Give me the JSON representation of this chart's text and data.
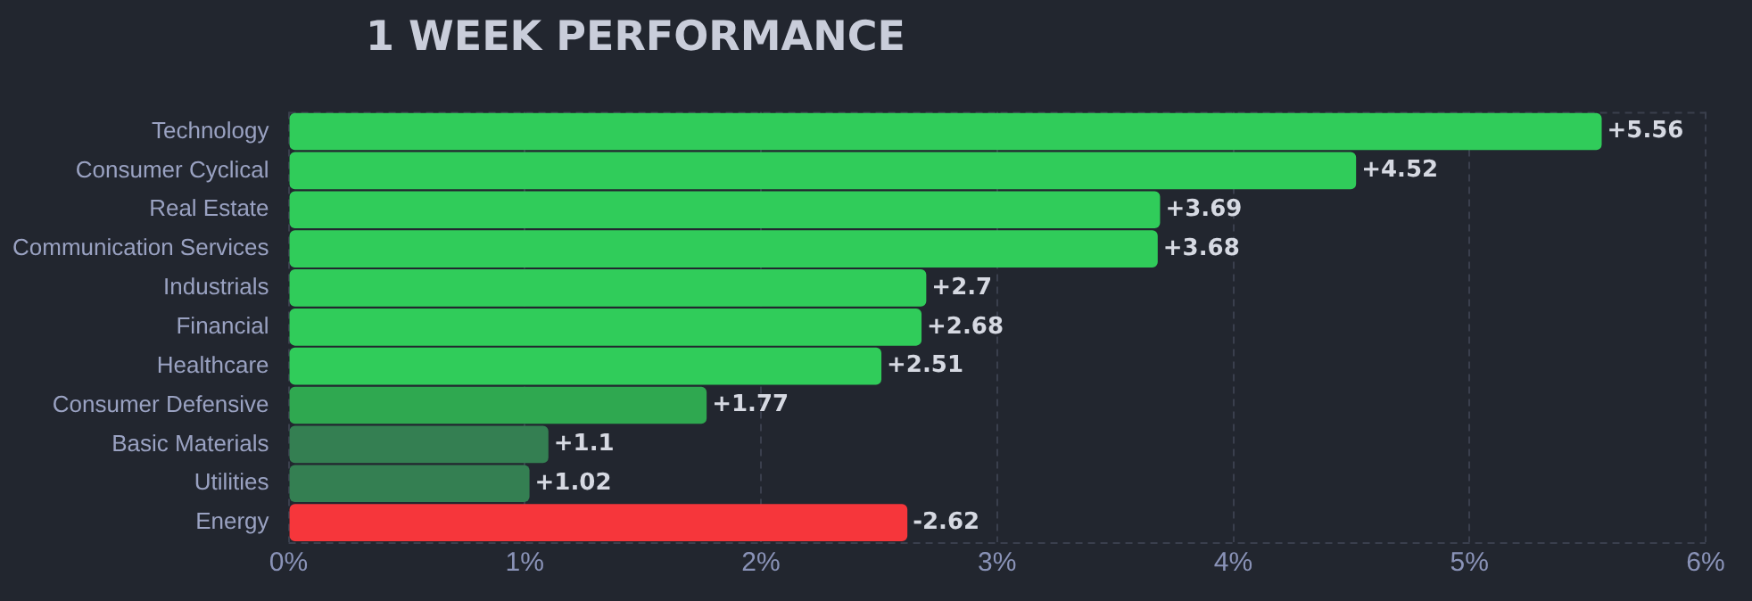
{
  "chart_data": {
    "type": "bar",
    "orientation": "horizontal",
    "title": "1 WEEK PERFORMANCE",
    "categories": [
      "Technology",
      "Consumer Cyclical",
      "Real Estate",
      "Communication Services",
      "Industrials",
      "Financial",
      "Healthcare",
      "Consumer Defensive",
      "Basic Materials",
      "Utilities",
      "Energy"
    ],
    "values": [
      5.56,
      4.52,
      3.69,
      3.68,
      2.7,
      2.68,
      2.51,
      1.77,
      1.1,
      1.02,
      -2.62
    ],
    "base": [
      0,
      0,
      0,
      0,
      0,
      0,
      0,
      0,
      0,
      0,
      2.62
    ],
    "value_labels": [
      "+5.56",
      "+4.52",
      "+3.69",
      "+3.68",
      "+2.7",
      "+2.68",
      "+2.51",
      "+1.77",
      "+1.1",
      "+1.02",
      "-2.62"
    ],
    "colors": [
      "#30cc5a",
      "#30cc5a",
      "#30cc5a",
      "#30cc5a",
      "#30cc5a",
      "#30cc5a",
      "#30cc5a",
      "#2fa850",
      "#347f52",
      "#347f52",
      "#f6363b"
    ],
    "xlim": [
      0,
      6
    ],
    "xticks": [
      {
        "value": 0,
        "label": "0%"
      },
      {
        "value": 1,
        "label": "1%"
      },
      {
        "value": 2,
        "label": "2%"
      },
      {
        "value": 3,
        "label": "3%"
      },
      {
        "value": 4,
        "label": "4%"
      },
      {
        "value": 5,
        "label": "5%"
      },
      {
        "value": 6,
        "label": "6%"
      }
    ],
    "grid": "x",
    "legend": false
  }
}
